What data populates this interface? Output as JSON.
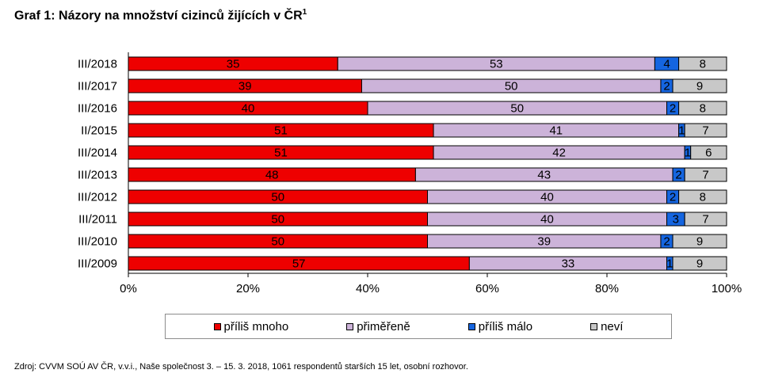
{
  "title_main": "Graf 1: Názory na množství cizinců žijících v ČR",
  "title_sup": "1",
  "source": "Zdroj: CVVM SOÚ AV ČR, v.v.i., Naše společnost 3. – 15. 3. 2018, 1061 respondentů starších 15 let, osobní rozhovor.",
  "chart_data": {
    "type": "bar",
    "orientation": "horizontal",
    "stacked": true,
    "percent_stacked": true,
    "categories": [
      "III/2018",
      "III/2017",
      "III/2016",
      "II/2015",
      "III/2014",
      "III/2013",
      "III/2012",
      "III/2011",
      "III/2010",
      "III/2009"
    ],
    "series": [
      {
        "name": "příliš mnoho",
        "color": "#ee0000",
        "values": [
          35,
          39,
          40,
          51,
          51,
          48,
          50,
          50,
          50,
          57
        ]
      },
      {
        "name": "přiměřeně",
        "color": "#ccb3d9",
        "values": [
          53,
          50,
          50,
          41,
          42,
          43,
          40,
          40,
          39,
          33
        ]
      },
      {
        "name": "příliš málo",
        "color": "#1565e0",
        "values": [
          4,
          2,
          2,
          1,
          1,
          2,
          2,
          3,
          2,
          1
        ]
      },
      {
        "name": "neví",
        "color": "#c8c8c8",
        "values": [
          8,
          9,
          8,
          7,
          6,
          7,
          8,
          7,
          9,
          9
        ]
      }
    ],
    "xlim": [
      0,
      100
    ],
    "xticks": [
      "0%",
      "20%",
      "40%",
      "60%",
      "80%",
      "100%"
    ],
    "legend_position": "bottom",
    "grid": false
  }
}
